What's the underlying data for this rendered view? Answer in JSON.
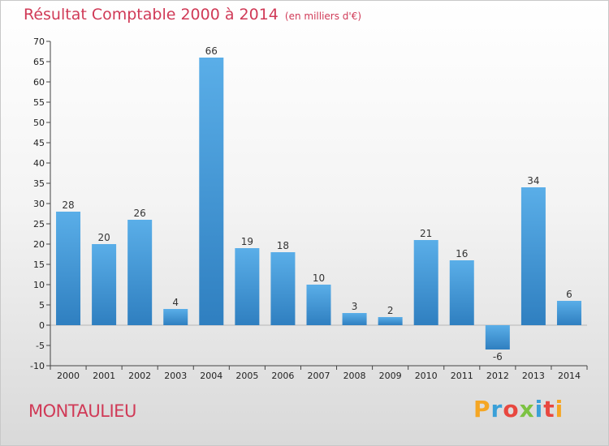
{
  "title": "Résultat Comptable 2000 à 2014",
  "subtitle": "(en milliers d'€)",
  "commune": "MONTAULIEU",
  "logo": {
    "letters": [
      "P",
      "r",
      "o",
      "x",
      "i",
      "t",
      "i"
    ],
    "colors": [
      "#f5a623",
      "#3aa0d8",
      "#e8473f",
      "#7cc242",
      "#3aa0d8",
      "#e8473f",
      "#f5a623"
    ]
  },
  "colors": {
    "bar_top": "#5aaee8",
    "bar_bottom": "#2f7fc0",
    "accent": "#d03a57",
    "axis": "#444444"
  },
  "chart_data": {
    "type": "bar",
    "title": "Résultat Comptable 2000 à 2014",
    "ylabel": "en milliers d'€",
    "xlabel": "",
    "categories": [
      "2000",
      "2001",
      "2002",
      "2003",
      "2004",
      "2005",
      "2006",
      "2007",
      "2008",
      "2009",
      "2010",
      "2011",
      "2012",
      "2013",
      "2014"
    ],
    "values": [
      28,
      20,
      26,
      4,
      66,
      19,
      18,
      10,
      3,
      2,
      21,
      16,
      -6,
      34,
      6
    ],
    "ylim": [
      -10,
      70
    ],
    "yticks": [
      -10,
      -5,
      0,
      5,
      10,
      15,
      20,
      25,
      30,
      35,
      40,
      45,
      50,
      55,
      60,
      65,
      70
    ],
    "grid": false,
    "legend": "none"
  }
}
